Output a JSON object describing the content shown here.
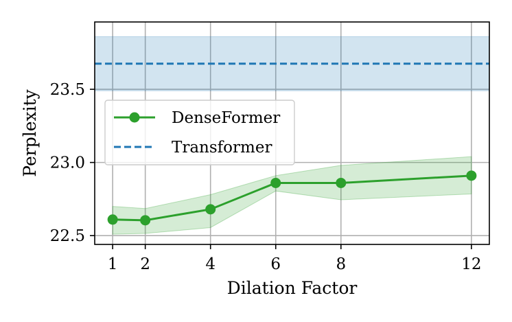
{
  "chart_data": {
    "type": "line",
    "xlabel": "Dilation Factor",
    "ylabel": "Perplexity",
    "x": [
      1,
      2,
      4,
      6,
      8,
      12
    ],
    "xticks": [
      "1",
      "2",
      "4",
      "6",
      "8",
      "12"
    ],
    "yticks": [
      22.5,
      23.0,
      23.5
    ],
    "ytick_labels": [
      "22.5",
      "23.0",
      "23.5"
    ],
    "xlim": [
      0.45,
      12.55
    ],
    "ylim": [
      22.44,
      23.96
    ],
    "grid": true,
    "legend_position": "center-left",
    "series": [
      {
        "name": "DenseFormer",
        "style": "solid line with circle markers",
        "color": "#2ca02c",
        "values": [
          22.61,
          22.605,
          22.68,
          22.86,
          22.86,
          22.91
        ],
        "band_lower": [
          22.51,
          22.515,
          22.555,
          22.805,
          22.745,
          22.785
        ],
        "band_upper": [
          22.7,
          22.685,
          22.78,
          22.91,
          22.98,
          23.04
        ]
      },
      {
        "name": "Transformer",
        "style": "dashed horizontal line",
        "color": "#1f77b4",
        "value": 23.675,
        "band": [
          23.49,
          23.86
        ]
      }
    ]
  }
}
